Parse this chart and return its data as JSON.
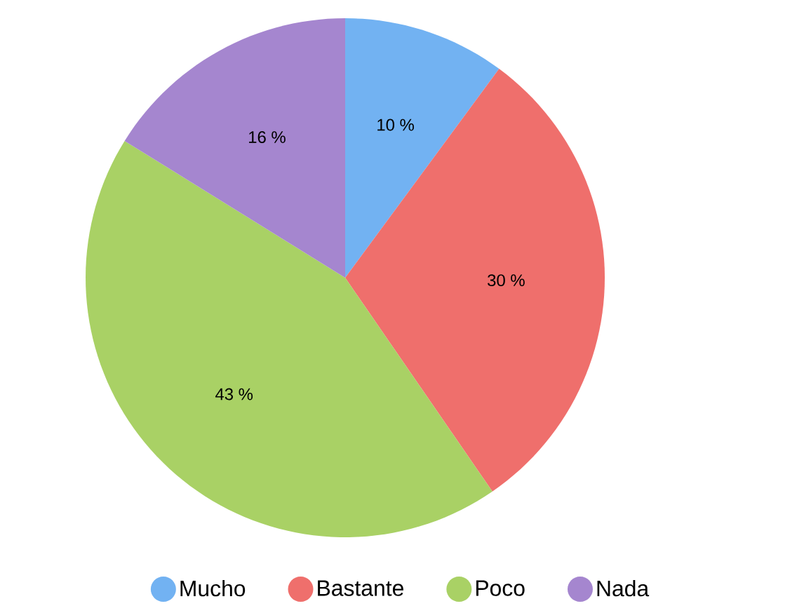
{
  "chart_data": {
    "type": "pie",
    "categories": [
      "Mucho",
      "Bastante",
      "Poco",
      "Nada"
    ],
    "values": [
      10,
      30,
      43,
      16
    ],
    "value_labels": [
      "10 %",
      "30 %",
      "43 %",
      "16 %"
    ],
    "colors": [
      "#72b2f2",
      "#ef6f6c",
      "#a9d165",
      "#a586cf"
    ],
    "legend": "bottom"
  }
}
